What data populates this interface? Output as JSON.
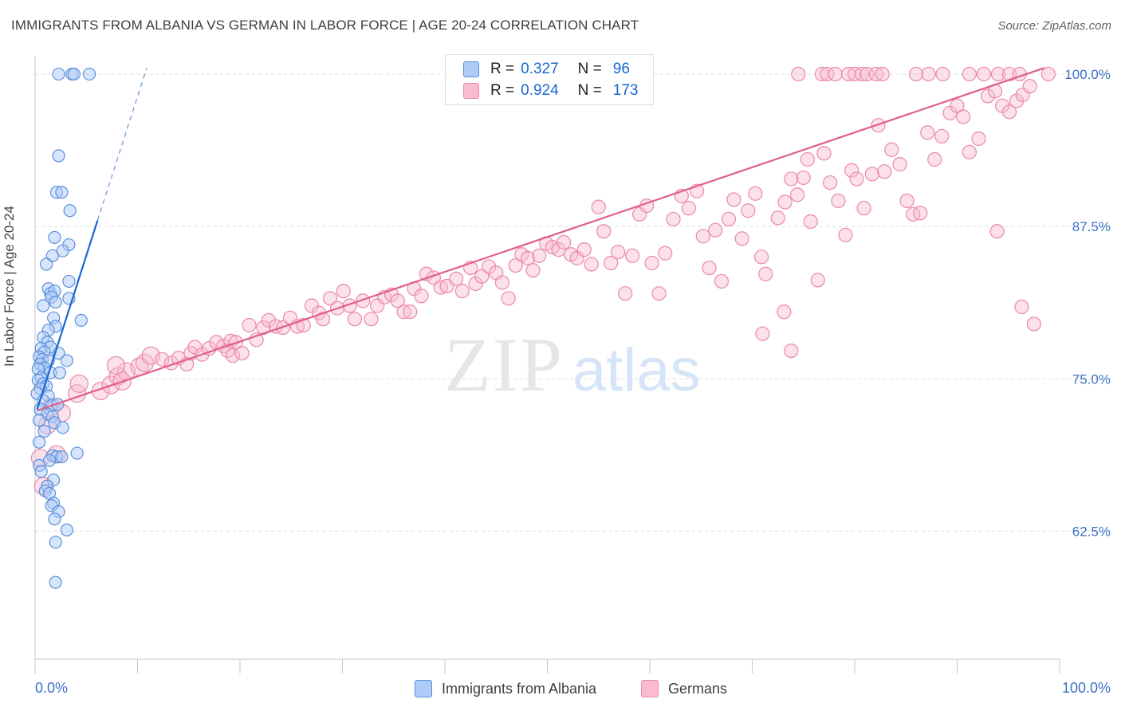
{
  "header": {
    "title": "IMMIGRANTS FROM ALBANIA VS GERMAN IN LABOR FORCE | AGE 20-24 CORRELATION CHART",
    "source": "Source: ZipAtlas.com"
  },
  "legend": {
    "series1": {
      "r_label": "R =",
      "r_value": "0.327",
      "n_label": "N =",
      "n_value": "96"
    },
    "series2": {
      "r_label": "R =",
      "r_value": "0.924",
      "n_label": "N =",
      "n_value": "173"
    }
  },
  "watermark": {
    "part1": "ZIP",
    "part2": "atlas"
  },
  "colors": {
    "blue_fill": "#aecbfa",
    "blue_stroke": "#5b8fd9",
    "blue_line": "#1967d2",
    "pink_fill": "#f8bbd0",
    "pink_stroke": "#e98aa9",
    "pink_line": "#e0608a",
    "axis_text": "#3c70c8",
    "grid": "#dadce0"
  },
  "chart_data": {
    "type": "scatter",
    "title": "IMMIGRANTS FROM ALBANIA VS GERMAN IN LABOR FORCE | AGE 20-24 CORRELATION CHART",
    "xlabel": "",
    "ylabel": "In Labor Force | Age 20-24",
    "xlim": [
      0,
      100
    ],
    "ylim": [
      52,
      101.5
    ],
    "x_tick_labels": [
      "0.0%",
      "100.0%"
    ],
    "y_ticks": [
      62.5,
      75.0,
      87.5,
      100.0
    ],
    "y_tick_labels": [
      "62.5%",
      "75.0%",
      "87.5%",
      "100.0%"
    ],
    "grid": true,
    "legend_position": "top-center",
    "series": [
      {
        "name": "Immigrants from Albania",
        "r": 0.327,
        "n": 96,
        "trend": {
          "x0": 0.2,
          "y0": 72.5,
          "x1": 6.1,
          "y1": 88.0,
          "dash_to": [
            10.9,
            100.5
          ]
        },
        "points": [
          [
            2.3,
            100
          ],
          [
            3.6,
            100
          ],
          [
            3.8,
            100
          ],
          [
            5.3,
            100
          ],
          [
            2.3,
            93.3
          ],
          [
            2.1,
            90.3
          ],
          [
            2.6,
            90.3
          ],
          [
            3.4,
            88.8
          ],
          [
            1.9,
            86.6
          ],
          [
            3.3,
            86.0
          ],
          [
            2.7,
            85.5
          ],
          [
            1.7,
            85.1
          ],
          [
            1.1,
            84.4
          ],
          [
            3.3,
            83.0
          ],
          [
            1.3,
            82.4
          ],
          [
            1.5,
            82.0
          ],
          [
            1.9,
            82.2
          ],
          [
            1.6,
            81.7
          ],
          [
            2.0,
            81.3
          ],
          [
            3.3,
            81.6
          ],
          [
            0.8,
            81.0
          ],
          [
            1.8,
            80.0
          ],
          [
            4.5,
            79.8
          ],
          [
            2.0,
            79.3
          ],
          [
            1.3,
            79.0
          ],
          [
            0.8,
            78.4
          ],
          [
            1.2,
            78.0
          ],
          [
            0.6,
            77.5
          ],
          [
            1.5,
            77.6
          ],
          [
            0.9,
            77.2
          ],
          [
            2.3,
            77.1
          ],
          [
            0.4,
            76.8
          ],
          [
            0.7,
            76.6
          ],
          [
            1.3,
            76.5
          ],
          [
            0.5,
            76.2
          ],
          [
            3.1,
            76.5
          ],
          [
            0.9,
            75.9
          ],
          [
            0.3,
            75.8
          ],
          [
            1.5,
            75.5
          ],
          [
            0.6,
            75.1
          ],
          [
            2.4,
            75.5
          ],
          [
            0.3,
            74.9
          ],
          [
            0.8,
            74.6
          ],
          [
            1.1,
            74.4
          ],
          [
            0.5,
            74.2
          ],
          [
            0.2,
            73.8
          ],
          [
            1.3,
            73.6
          ],
          [
            0.8,
            73.2
          ],
          [
            1.6,
            72.8
          ],
          [
            2.2,
            72.9
          ],
          [
            0.5,
            72.5
          ],
          [
            1.2,
            72.1
          ],
          [
            1.7,
            71.9
          ],
          [
            0.4,
            71.6
          ],
          [
            1.9,
            71.4
          ],
          [
            2.7,
            71.0
          ],
          [
            0.9,
            70.7
          ],
          [
            0.4,
            69.8
          ],
          [
            4.1,
            68.9
          ],
          [
            1.7,
            68.7
          ],
          [
            2.1,
            68.6
          ],
          [
            2.6,
            68.6
          ],
          [
            1.4,
            68.3
          ],
          [
            0.4,
            67.9
          ],
          [
            0.6,
            67.4
          ],
          [
            1.8,
            66.7
          ],
          [
            1.2,
            66.2
          ],
          [
            1.0,
            65.8
          ],
          [
            1.4,
            65.6
          ],
          [
            1.8,
            64.8
          ],
          [
            1.6,
            64.6
          ],
          [
            2.3,
            64.1
          ],
          [
            1.9,
            63.5
          ],
          [
            3.1,
            62.6
          ],
          [
            2.0,
            61.6
          ],
          [
            2.0,
            58.3
          ]
        ]
      },
      {
        "name": "Germans",
        "r": 0.924,
        "n": 173,
        "trend": {
          "x0": 0.2,
          "y0": 72.4,
          "x1": 98.5,
          "y1": 100.5
        },
        "points": [
          [
            0.5,
            68.5
          ],
          [
            2.1,
            68.8
          ],
          [
            0.8,
            66.2
          ],
          [
            1.2,
            71.2
          ],
          [
            1.6,
            72.7
          ],
          [
            2.6,
            72.2
          ],
          [
            4.1,
            73.8
          ],
          [
            6.4,
            74.0
          ],
          [
            4.3,
            74.6
          ],
          [
            7.4,
            74.5
          ],
          [
            8.1,
            75.2
          ],
          [
            8.5,
            74.8
          ],
          [
            8.9,
            75.6
          ],
          [
            7.9,
            76.1
          ],
          [
            10.2,
            76.0
          ],
          [
            10.7,
            76.3
          ],
          [
            11.3,
            76.9
          ],
          [
            12.4,
            76.6
          ],
          [
            13.3,
            76.3
          ],
          [
            14.0,
            76.7
          ],
          [
            14.8,
            76.2
          ],
          [
            15.2,
            77.1
          ],
          [
            15.6,
            77.6
          ],
          [
            16.3,
            77.0
          ],
          [
            17.0,
            77.5
          ],
          [
            17.7,
            78.0
          ],
          [
            18.4,
            77.7
          ],
          [
            19.1,
            78.1
          ],
          [
            19.6,
            78.0
          ],
          [
            18.8,
            77.3
          ],
          [
            19.3,
            76.9
          ],
          [
            20.2,
            77.1
          ],
          [
            20.9,
            79.4
          ],
          [
            21.6,
            78.2
          ],
          [
            22.3,
            79.2
          ],
          [
            22.8,
            79.8
          ],
          [
            23.5,
            79.3
          ],
          [
            24.2,
            79.2
          ],
          [
            24.9,
            80.0
          ],
          [
            25.6,
            79.3
          ],
          [
            26.2,
            79.4
          ],
          [
            27.0,
            81.0
          ],
          [
            27.7,
            80.4
          ],
          [
            28.1,
            79.9
          ],
          [
            28.8,
            81.6
          ],
          [
            29.5,
            80.8
          ],
          [
            30.1,
            82.2
          ],
          [
            30.7,
            81.0
          ],
          [
            31.2,
            79.9
          ],
          [
            32.0,
            81.4
          ],
          [
            32.8,
            79.9
          ],
          [
            33.4,
            81.0
          ],
          [
            34.1,
            81.7
          ],
          [
            34.8,
            81.9
          ],
          [
            35.4,
            81.4
          ],
          [
            36.0,
            80.5
          ],
          [
            36.6,
            80.5
          ],
          [
            37.0,
            82.4
          ],
          [
            37.7,
            81.8
          ],
          [
            38.2,
            83.6
          ],
          [
            38.9,
            83.3
          ],
          [
            39.6,
            82.5
          ],
          [
            40.2,
            82.6
          ],
          [
            41.1,
            83.2
          ],
          [
            41.7,
            82.2
          ],
          [
            42.5,
            84.1
          ],
          [
            43.0,
            82.8
          ],
          [
            43.6,
            83.4
          ],
          [
            44.3,
            84.2
          ],
          [
            45.0,
            83.7
          ],
          [
            45.6,
            82.9
          ],
          [
            46.2,
            81.6
          ],
          [
            46.9,
            84.3
          ],
          [
            47.5,
            85.2
          ],
          [
            48.1,
            84.9
          ],
          [
            48.6,
            83.9
          ],
          [
            49.2,
            85.1
          ],
          [
            49.9,
            86.1
          ],
          [
            50.5,
            85.8
          ],
          [
            51.1,
            85.6
          ],
          [
            51.6,
            86.2
          ],
          [
            52.3,
            85.2
          ],
          [
            52.9,
            84.9
          ],
          [
            53.6,
            85.6
          ],
          [
            54.3,
            84.4
          ],
          [
            55.0,
            89.1
          ],
          [
            55.5,
            87.1
          ],
          [
            56.2,
            84.5
          ],
          [
            56.9,
            85.4
          ],
          [
            57.6,
            82.0
          ],
          [
            58.3,
            85.1
          ],
          [
            59.0,
            88.5
          ],
          [
            59.7,
            89.2
          ],
          [
            60.2,
            84.5
          ],
          [
            60.9,
            82.0
          ],
          [
            61.5,
            85.3
          ],
          [
            62.3,
            88.1
          ],
          [
            63.1,
            90.0
          ],
          [
            63.8,
            89.0
          ],
          [
            64.6,
            90.4
          ],
          [
            65.2,
            86.7
          ],
          [
            65.8,
            84.1
          ],
          [
            66.4,
            87.2
          ],
          [
            67.0,
            83.0
          ],
          [
            67.7,
            88.1
          ],
          [
            68.2,
            89.7
          ],
          [
            69.0,
            86.5
          ],
          [
            69.6,
            88.8
          ],
          [
            70.3,
            90.2
          ],
          [
            70.9,
            85.0
          ],
          [
            71.3,
            83.6
          ],
          [
            72.5,
            88.2
          ],
          [
            73.2,
            89.5
          ],
          [
            73.8,
            91.4
          ],
          [
            74.4,
            90.1
          ],
          [
            75.0,
            91.5
          ],
          [
            75.7,
            87.9
          ],
          [
            76.4,
            83.1
          ],
          [
            77.0,
            93.5
          ],
          [
            77.6,
            91.1
          ],
          [
            78.4,
            89.6
          ],
          [
            79.1,
            86.8
          ],
          [
            79.7,
            92.1
          ],
          [
            80.2,
            91.4
          ],
          [
            80.9,
            89.0
          ],
          [
            81.7,
            91.8
          ],
          [
            82.3,
            95.8
          ],
          [
            82.9,
            92.0
          ],
          [
            83.6,
            93.8
          ],
          [
            84.4,
            92.6
          ],
          [
            85.1,
            89.6
          ],
          [
            85.7,
            88.5
          ],
          [
            86.4,
            88.6
          ],
          [
            87.1,
            95.2
          ],
          [
            87.8,
            93.0
          ],
          [
            88.5,
            94.9
          ],
          [
            89.3,
            96.8
          ],
          [
            90.0,
            97.4
          ],
          [
            90.6,
            96.5
          ],
          [
            91.2,
            93.6
          ],
          [
            92.1,
            94.7
          ],
          [
            93.0,
            98.2
          ],
          [
            93.7,
            98.6
          ],
          [
            94.4,
            97.4
          ],
          [
            95.1,
            96.9
          ],
          [
            95.8,
            97.8
          ],
          [
            96.4,
            98.3
          ],
          [
            97.1,
            99.0
          ],
          [
            74.5,
            100
          ],
          [
            76.8,
            100
          ],
          [
            77.3,
            100
          ],
          [
            78.1,
            100
          ],
          [
            79.4,
            100
          ],
          [
            80.0,
            100
          ],
          [
            80.7,
            100
          ],
          [
            81.2,
            100
          ],
          [
            82.1,
            100
          ],
          [
            82.7,
            100
          ],
          [
            86.0,
            100
          ],
          [
            87.2,
            100
          ],
          [
            88.6,
            100
          ],
          [
            91.2,
            100
          ],
          [
            92.6,
            100
          ],
          [
            94.0,
            100
          ],
          [
            95.1,
            100
          ],
          [
            96.1,
            100
          ],
          [
            98.9,
            100
          ],
          [
            96.3,
            80.9
          ],
          [
            93.9,
            87.1
          ],
          [
            97.5,
            79.5
          ],
          [
            71.0,
            78.7
          ],
          [
            73.1,
            80.5
          ],
          [
            73.8,
            77.3
          ],
          [
            75.4,
            93.0
          ]
        ]
      }
    ]
  },
  "axes": {
    "x_left_label": "0.0%",
    "x_right_label": "100.0%",
    "y_axis_title": "In Labor Force | Age 20-24"
  },
  "bottom_legend": {
    "item1": "Immigrants from Albania",
    "item2": "Germans"
  }
}
